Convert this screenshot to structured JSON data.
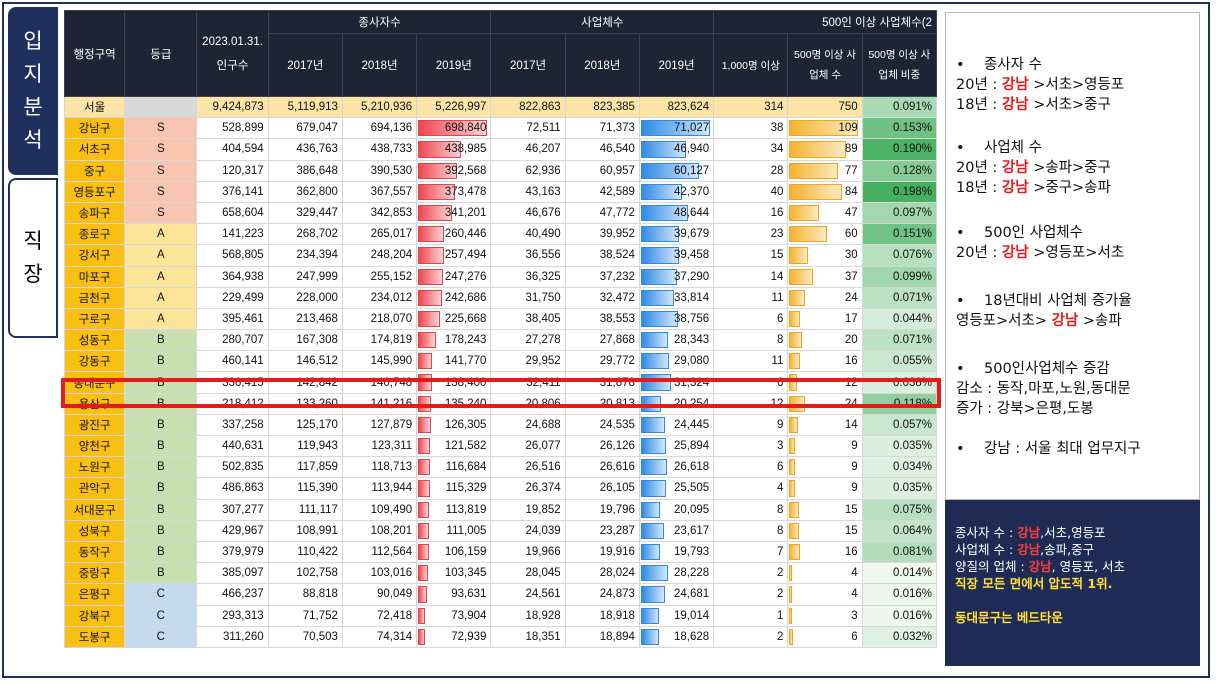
{
  "tabs": [
    "입\n지\n분\n석",
    "직\n장"
  ],
  "table": {
    "header_groups": [
      "행정구역",
      "등급",
      "2023.01.31. 인구수",
      "종사자수",
      "사업체수",
      "500인 이상 사업체수(2"
    ],
    "headers": [
      "2017년",
      "2018년",
      "2019년",
      "2017년",
      "2018년",
      "2019년",
      "1,000명 이상",
      "500명 이상 사업체 수",
      "500명 이상 사업체 비중"
    ],
    "rows": [
      {
        "region": "서울",
        "grade": "",
        "pop": "9,424,873",
        "w17": "5,119,913",
        "w18": "5,210,936",
        "w19": "5,226,997",
        "b17": "822,863",
        "b18": "823,385",
        "b19": "823,624",
        "k1000": "314",
        "k500": "750",
        "ratio": "0.091%"
      },
      {
        "region": "강남구",
        "grade": "S",
        "pop": "528,899",
        "w17": "679,047",
        "w18": "694,136",
        "w19": "698,840",
        "b17": "72,511",
        "b18": "71,373",
        "b19": "71,027",
        "k1000": "38",
        "k500": "109",
        "ratio": "0.153%"
      },
      {
        "region": "서초구",
        "grade": "S",
        "pop": "404,594",
        "w17": "436,763",
        "w18": "438,733",
        "w19": "438,985",
        "b17": "46,207",
        "b18": "46,540",
        "b19": "46,940",
        "k1000": "34",
        "k500": "89",
        "ratio": "0.190%"
      },
      {
        "region": "중구",
        "grade": "S",
        "pop": "120,317",
        "w17": "386,648",
        "w18": "390,530",
        "w19": "392,568",
        "b17": "62,936",
        "b18": "60,957",
        "b19": "60,127",
        "k1000": "28",
        "k500": "77",
        "ratio": "0.128%"
      },
      {
        "region": "영등포구",
        "grade": "S",
        "pop": "376,141",
        "w17": "362,800",
        "w18": "367,557",
        "w19": "373,478",
        "b17": "43,163",
        "b18": "42,589",
        "b19": "42,370",
        "k1000": "40",
        "k500": "84",
        "ratio": "0.198%"
      },
      {
        "region": "송파구",
        "grade": "S",
        "pop": "658,604",
        "w17": "329,447",
        "w18": "342,853",
        "w19": "341,201",
        "b17": "46,676",
        "b18": "47,772",
        "b19": "48,644",
        "k1000": "16",
        "k500": "47",
        "ratio": "0.097%"
      },
      {
        "region": "종로구",
        "grade": "A",
        "pop": "141,223",
        "w17": "268,702",
        "w18": "265,017",
        "w19": "260,446",
        "b17": "40,490",
        "b18": "39,952",
        "b19": "39,679",
        "k1000": "23",
        "k500": "60",
        "ratio": "0.151%"
      },
      {
        "region": "강서구",
        "grade": "A",
        "pop": "568,805",
        "w17": "234,394",
        "w18": "248,204",
        "w19": "257,494",
        "b17": "36,556",
        "b18": "38,524",
        "b19": "39,458",
        "k1000": "15",
        "k500": "30",
        "ratio": "0.076%"
      },
      {
        "region": "마포구",
        "grade": "A",
        "pop": "364,938",
        "w17": "247,999",
        "w18": "255,152",
        "w19": "247,276",
        "b17": "36,325",
        "b18": "37,232",
        "b19": "37,290",
        "k1000": "14",
        "k500": "37",
        "ratio": "0.099%"
      },
      {
        "region": "금천구",
        "grade": "A",
        "pop": "229,499",
        "w17": "228,000",
        "w18": "234,012",
        "w19": "242,686",
        "b17": "31,750",
        "b18": "32,472",
        "b19": "33,814",
        "k1000": "11",
        "k500": "24",
        "ratio": "0.071%"
      },
      {
        "region": "구로구",
        "grade": "A",
        "pop": "395,461",
        "w17": "213,468",
        "w18": "218,070",
        "w19": "225,668",
        "b17": "38,405",
        "b18": "38,553",
        "b19": "38,756",
        "k1000": "6",
        "k500": "17",
        "ratio": "0.044%"
      },
      {
        "region": "성동구",
        "grade": "B",
        "pop": "280,707",
        "w17": "167,308",
        "w18": "174,819",
        "w19": "178,243",
        "b17": "27,278",
        "b18": "27,868",
        "b19": "28,343",
        "k1000": "8",
        "k500": "20",
        "ratio": "0.071%"
      },
      {
        "region": "강동구",
        "grade": "B",
        "pop": "460,141",
        "w17": "146,512",
        "w18": "145,990",
        "w19": "141,770",
        "b17": "29,952",
        "b18": "29,772",
        "b19": "29,080",
        "k1000": "11",
        "k500": "16",
        "ratio": "0.055%"
      },
      {
        "region": "동대문구",
        "grade": "B",
        "pop": "336,415",
        "w17": "142,842",
        "w18": "140,748",
        "w19": "138,400",
        "b17": "32,411",
        "b18": "31,878",
        "b19": "31,324",
        "k1000": "6",
        "k500": "12",
        "ratio": "0.038%"
      },
      {
        "region": "용산구",
        "grade": "B",
        "pop": "218,412",
        "w17": "133,260",
        "w18": "141,216",
        "w19": "135,240",
        "b17": "20,806",
        "b18": "20,813",
        "b19": "20,254",
        "k1000": "12",
        "k500": "24",
        "ratio": "0.118%"
      },
      {
        "region": "광진구",
        "grade": "B",
        "pop": "337,258",
        "w17": "125,170",
        "w18": "127,879",
        "w19": "126,305",
        "b17": "24,688",
        "b18": "24,535",
        "b19": "24,445",
        "k1000": "9",
        "k500": "14",
        "ratio": "0.057%"
      },
      {
        "region": "양천구",
        "grade": "B",
        "pop": "440,631",
        "w17": "119,943",
        "w18": "123,311",
        "w19": "121,582",
        "b17": "26,077",
        "b18": "26,126",
        "b19": "25,894",
        "k1000": "3",
        "k500": "9",
        "ratio": "0.035%"
      },
      {
        "region": "노원구",
        "grade": "B",
        "pop": "502,835",
        "w17": "117,859",
        "w18": "118,713",
        "w19": "116,684",
        "b17": "26,516",
        "b18": "26,616",
        "b19": "26,618",
        "k1000": "6",
        "k500": "9",
        "ratio": "0.034%"
      },
      {
        "region": "관악구",
        "grade": "B",
        "pop": "486,863",
        "w17": "115,390",
        "w18": "113,944",
        "w19": "115,329",
        "b17": "26,374",
        "b18": "26,105",
        "b19": "25,505",
        "k1000": "4",
        "k500": "9",
        "ratio": "0.035%"
      },
      {
        "region": "서대문구",
        "grade": "B",
        "pop": "307,277",
        "w17": "111,117",
        "w18": "109,490",
        "w19": "113,819",
        "b17": "19,852",
        "b18": "19,796",
        "b19": "20,095",
        "k1000": "8",
        "k500": "15",
        "ratio": "0.075%"
      },
      {
        "region": "성북구",
        "grade": "B",
        "pop": "429,967",
        "w17": "108,991",
        "w18": "108,201",
        "w19": "111,005",
        "b17": "24,039",
        "b18": "23,287",
        "b19": "23,617",
        "k1000": "8",
        "k500": "15",
        "ratio": "0.064%"
      },
      {
        "region": "동작구",
        "grade": "B",
        "pop": "379,979",
        "w17": "110,422",
        "w18": "112,564",
        "w19": "106,159",
        "b17": "19,966",
        "b18": "19,916",
        "b19": "19,793",
        "k1000": "7",
        "k500": "16",
        "ratio": "0.081%"
      },
      {
        "region": "중랑구",
        "grade": "B",
        "pop": "385,097",
        "w17": "102,758",
        "w18": "103,016",
        "w19": "103,345",
        "b17": "28,045",
        "b18": "28,024",
        "b19": "28,228",
        "k1000": "2",
        "k500": "4",
        "ratio": "0.014%"
      },
      {
        "region": "은평구",
        "grade": "C",
        "pop": "466,237",
        "w17": "88,818",
        "w18": "90,049",
        "w19": "93,631",
        "b17": "24,561",
        "b18": "24,873",
        "b19": "24,681",
        "k1000": "2",
        "k500": "4",
        "ratio": "0.016%"
      },
      {
        "region": "강북구",
        "grade": "C",
        "pop": "293,313",
        "w17": "71,752",
        "w18": "72,418",
        "w19": "73,904",
        "b17": "18,928",
        "b18": "18,918",
        "b19": "19,014",
        "k1000": "1",
        "k500": "3",
        "ratio": "0.016%"
      },
      {
        "region": "도봉구",
        "grade": "C",
        "pop": "311,260",
        "w17": "70,503",
        "w18": "74,314",
        "w19": "72,939",
        "b17": "18,351",
        "b18": "18,894",
        "b19": "18,628",
        "k1000": "2",
        "k500": "6",
        "ratio": "0.032%"
      }
    ],
    "grade_colors": {
      "S": "#f7c5b0",
      "A": "#fde59a",
      "B": "#c8e0b0",
      "C": "#c5d9ef",
      "seoul": "#fbe4a6"
    },
    "region_color": "#f9bf13",
    "highlighted_row": "동대문구"
  },
  "notes": [
    {
      "title": "종사자 수",
      "lines": [
        [
          {
            "t": "20년 : "
          },
          {
            "t": "강남",
            "red": true
          },
          {
            "t": " >서초>영등포"
          }
        ],
        [
          {
            "t": "18년 : "
          },
          {
            "t": "강남",
            "red": true
          },
          {
            "t": " >서초>중구"
          }
        ]
      ]
    },
    {
      "title": "사업체 수",
      "lines": [
        [
          {
            "t": "20년 : "
          },
          {
            "t": "강남",
            "red": true
          },
          {
            "t": " >송파>중구"
          }
        ],
        [
          {
            "t": "18년 : "
          },
          {
            "t": "강남",
            "red": true
          },
          {
            "t": " >중구>송파"
          }
        ]
      ]
    },
    {
      "title": "500인 사업체수",
      "lines": [
        [
          {
            "t": "20년 : "
          },
          {
            "t": "강남",
            "red": true
          },
          {
            "t": " >영등포>서초"
          }
        ]
      ]
    },
    {
      "title": "18년대비 사업체 증가율",
      "lines": [
        [
          {
            "t": "영등포>서초> "
          },
          {
            "t": "강남",
            "red": true
          },
          {
            "t": " >송파"
          }
        ]
      ]
    },
    {
      "title": "500인사업체수 증감",
      "lines": [
        [
          {
            "t": "감소 : 동작,마포,노원,동대문"
          }
        ],
        [
          {
            "t": "증가 : 강북>은평,도봉"
          }
        ]
      ]
    },
    {
      "title": "강남 : 서울 최대 업무지구",
      "lines": []
    }
  ],
  "summary": [
    [
      {
        "t": "종사자 수 : "
      },
      {
        "t": "강남",
        "c": "red"
      },
      {
        "t": ",서초,영등포"
      }
    ],
    [
      {
        "t": "사업체 수 : "
      },
      {
        "t": "강남",
        "c": "red"
      },
      {
        "t": ",송파,중구"
      }
    ],
    [
      {
        "t": "양질의 업체 : "
      },
      {
        "t": "강남",
        "c": "red"
      },
      {
        "t": ", 영등포, 서초"
      }
    ],
    [
      {
        "t": "직장 모든 면에서 압도적 1위.",
        "c": "yellow"
      }
    ],
    [
      {
        "t": ""
      }
    ],
    [
      {
        "t": "동대문구는 베드타운",
        "c": "yellow"
      }
    ]
  ],
  "colors": {
    "navy": "#1f2f5e",
    "header_bg": "#1e2433",
    "red_bar": "#f0474f",
    "blue_bar": "#2e8ae6",
    "orange_bar": "#f6b330",
    "ratio_green": "#3fae5c",
    "highlight": "#e41b1b"
  }
}
